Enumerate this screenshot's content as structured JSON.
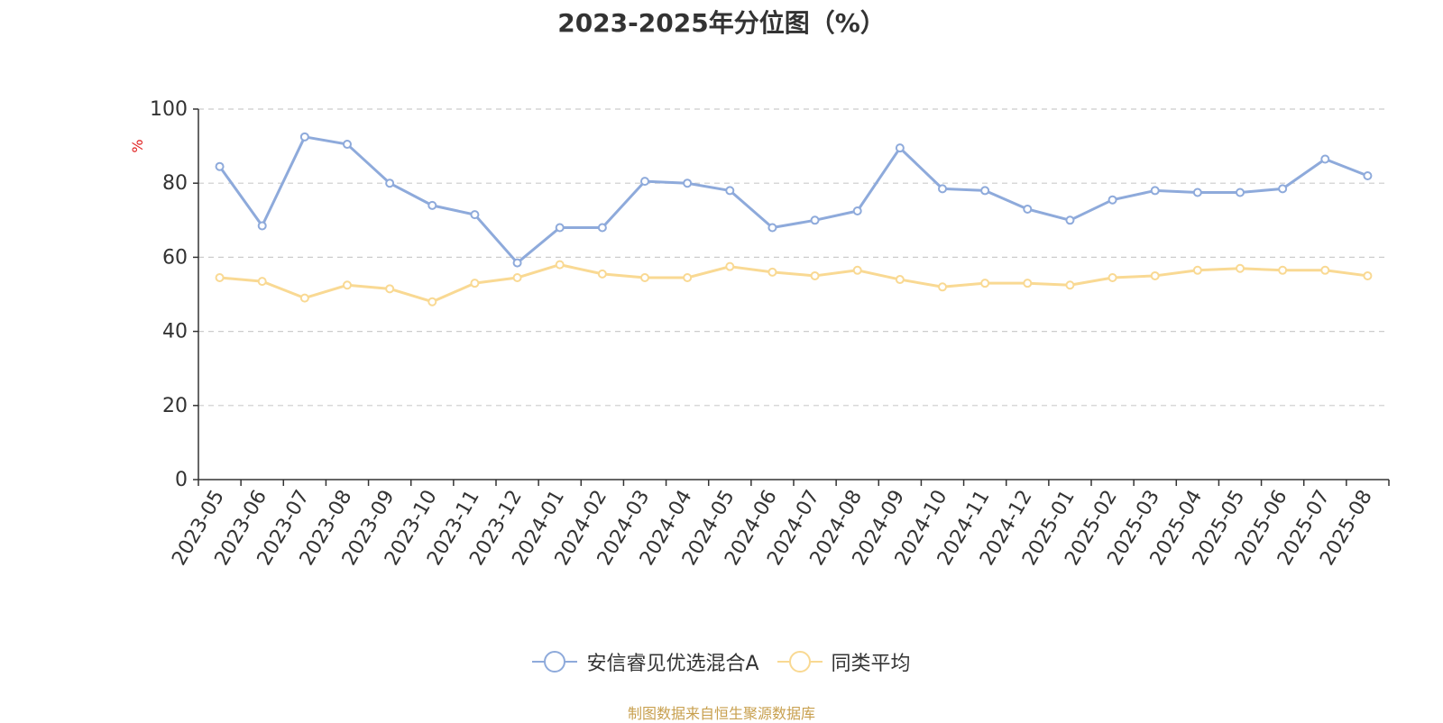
{
  "chart_data": {
    "type": "line",
    "title": "2023-2025年分位图（%）",
    "ylabel": "%",
    "ylim": [
      0,
      100
    ],
    "yticks": [
      0,
      20,
      40,
      60,
      80,
      100
    ],
    "grid": true,
    "legend_position": "bottom-center",
    "categories": [
      "2023-05",
      "2023-06",
      "2023-07",
      "2023-08",
      "2023-09",
      "2023-10",
      "2023-11",
      "2023-12",
      "2024-01",
      "2024-02",
      "2024-03",
      "2024-04",
      "2024-05",
      "2024-06",
      "2024-07",
      "2024-08",
      "2024-09",
      "2024-10",
      "2024-11",
      "2024-12",
      "2025-01",
      "2025-02",
      "2025-03",
      "2025-04",
      "2025-05",
      "2025-06",
      "2025-07",
      "2025-08"
    ],
    "series": [
      {
        "name": "安信睿见优选混合A",
        "color": "#8eaadb",
        "values": [
          84.5,
          68.5,
          92.5,
          90.5,
          80.0,
          74.0,
          71.5,
          58.5,
          68.0,
          68.0,
          80.5,
          80.0,
          78.0,
          68.0,
          70.0,
          72.5,
          89.5,
          78.5,
          78.0,
          73.0,
          70.0,
          75.5,
          78.0,
          77.5,
          77.5,
          78.5,
          86.5,
          82.0
        ]
      },
      {
        "name": "同类平均",
        "color": "#f9d993",
        "values": [
          54.5,
          53.5,
          49.0,
          52.5,
          51.5,
          48.0,
          53.0,
          54.5,
          58.0,
          55.5,
          54.5,
          54.5,
          57.5,
          56.0,
          55.0,
          56.5,
          54.0,
          52.0,
          53.0,
          53.0,
          52.5,
          54.5,
          55.0,
          56.5,
          57.0,
          56.5,
          56.5,
          55.0
        ]
      }
    ]
  },
  "footer": {
    "source": "制图数据来自恒生聚源数据库"
  }
}
